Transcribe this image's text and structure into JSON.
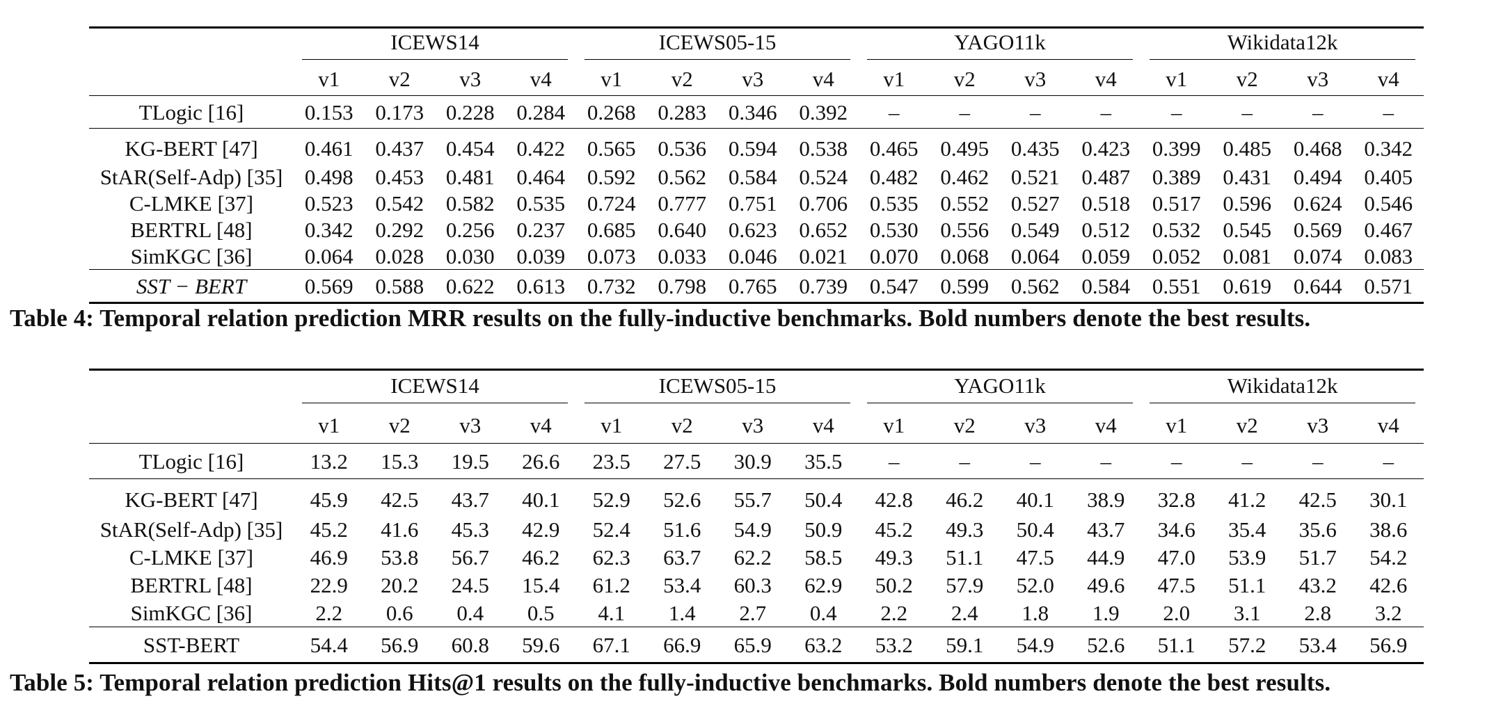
{
  "table4": {
    "groups": [
      "ICEWS14",
      "ICEWS05-15",
      "YAGO11k",
      "Wikidata12k"
    ],
    "versions": [
      "v1",
      "v2",
      "v3",
      "v4"
    ],
    "rows": [
      {
        "method": "TLogic [16]",
        "values": [
          "0.153",
          "0.173",
          "0.228",
          "0.284",
          "0.268",
          "0.283",
          "0.346",
          "0.392",
          "–",
          "–",
          "–",
          "–",
          "–",
          "–",
          "–",
          "–"
        ]
      },
      {
        "method": "KG-BERT [47]",
        "values": [
          "0.461",
          "0.437",
          "0.454",
          "0.422",
          "0.565",
          "0.536",
          "0.594",
          "0.538",
          "0.465",
          "0.495",
          "0.435",
          "0.423",
          "0.399",
          "0.485",
          "0.468",
          "0.342"
        ]
      },
      {
        "method": "StAR(Self-Adp) [35]",
        "values": [
          "0.498",
          "0.453",
          "0.481",
          "0.464",
          "0.592",
          "0.562",
          "0.584",
          "0.524",
          "0.482",
          "0.462",
          "0.521",
          "0.487",
          "0.389",
          "0.431",
          "0.494",
          "0.405"
        ]
      },
      {
        "method": "C-LMKE [37]",
        "values": [
          "0.523",
          "0.542",
          "0.582",
          "0.535",
          "0.724",
          "0.777",
          "0.751",
          "0.706",
          "0.535",
          "0.552",
          "0.527",
          "0.518",
          "0.517",
          "0.596",
          "0.624",
          "0.546"
        ]
      },
      {
        "method": "BERTRL [48]",
        "values": [
          "0.342",
          "0.292",
          "0.256",
          "0.237",
          "0.685",
          "0.640",
          "0.623",
          "0.652",
          "0.530",
          "0.556",
          "0.549",
          "0.512",
          "0.532",
          "0.545",
          "0.569",
          "0.467"
        ]
      },
      {
        "method": "SimKGC [36]",
        "values": [
          "0.064",
          "0.028",
          "0.030",
          "0.039",
          "0.073",
          "0.033",
          "0.046",
          "0.021",
          "0.070",
          "0.068",
          "0.064",
          "0.059",
          "0.052",
          "0.081",
          "0.074",
          "0.083"
        ]
      },
      {
        "method": "SST − BERT",
        "values": [
          "0.569",
          "0.588",
          "0.622",
          "0.613",
          "0.732",
          "0.798",
          "0.765",
          "0.739",
          "0.547",
          "0.599",
          "0.562",
          "0.584",
          "0.551",
          "0.619",
          "0.644",
          "0.571"
        ]
      }
    ],
    "caption": "Table 4: Temporal relation prediction MRR results on the fully-inductive benchmarks. Bold numbers denote the best results."
  },
  "table5": {
    "groups": [
      "ICEWS14",
      "ICEWS05-15",
      "YAGO11k",
      "Wikidata12k"
    ],
    "versions": [
      "v1",
      "v2",
      "v3",
      "v4"
    ],
    "rows": [
      {
        "method": "TLogic [16]",
        "values": [
          "13.2",
          "15.3",
          "19.5",
          "26.6",
          "23.5",
          "27.5",
          "30.9",
          "35.5",
          "–",
          "–",
          "–",
          "–",
          "–",
          "–",
          "–",
          "–"
        ]
      },
      {
        "method": "KG-BERT [47]",
        "values": [
          "45.9",
          "42.5",
          "43.7",
          "40.1",
          "52.9",
          "52.6",
          "55.7",
          "50.4",
          "42.8",
          "46.2",
          "40.1",
          "38.9",
          "32.8",
          "41.2",
          "42.5",
          "30.1"
        ]
      },
      {
        "method": "StAR(Self-Adp) [35]",
        "values": [
          "45.2",
          "41.6",
          "45.3",
          "42.9",
          "52.4",
          "51.6",
          "54.9",
          "50.9",
          "45.2",
          "49.3",
          "50.4",
          "43.7",
          "34.6",
          "35.4",
          "35.6",
          "38.6"
        ]
      },
      {
        "method": "C-LMKE [37]",
        "values": [
          "46.9",
          "53.8",
          "56.7",
          "46.2",
          "62.3",
          "63.7",
          "62.2",
          "58.5",
          "49.3",
          "51.1",
          "47.5",
          "44.9",
          "47.0",
          "53.9",
          "51.7",
          "54.2"
        ]
      },
      {
        "method": "BERTRL [48]",
        "values": [
          "22.9",
          "20.2",
          "24.5",
          "15.4",
          "61.2",
          "53.4",
          "60.3",
          "62.9",
          "50.2",
          "57.9",
          "52.0",
          "49.6",
          "47.5",
          "51.1",
          "43.2",
          "42.6"
        ]
      },
      {
        "method": "SimKGC [36]",
        "values": [
          "2.2",
          "0.6",
          "0.4",
          "0.5",
          "4.1",
          "1.4",
          "2.7",
          "0.4",
          "2.2",
          "2.4",
          "1.8",
          "1.9",
          "2.0",
          "3.1",
          "2.8",
          "3.2"
        ]
      },
      {
        "method": "SST-BERT",
        "values": [
          "54.4",
          "56.9",
          "60.8",
          "59.6",
          "67.1",
          "66.9",
          "65.9",
          "63.2",
          "53.2",
          "59.1",
          "54.9",
          "52.6",
          "51.1",
          "57.2",
          "53.4",
          "56.9"
        ]
      }
    ],
    "caption": "Table 5: Temporal relation prediction Hits@1 results on the fully-inductive benchmarks. Bold numbers denote the best results."
  }
}
